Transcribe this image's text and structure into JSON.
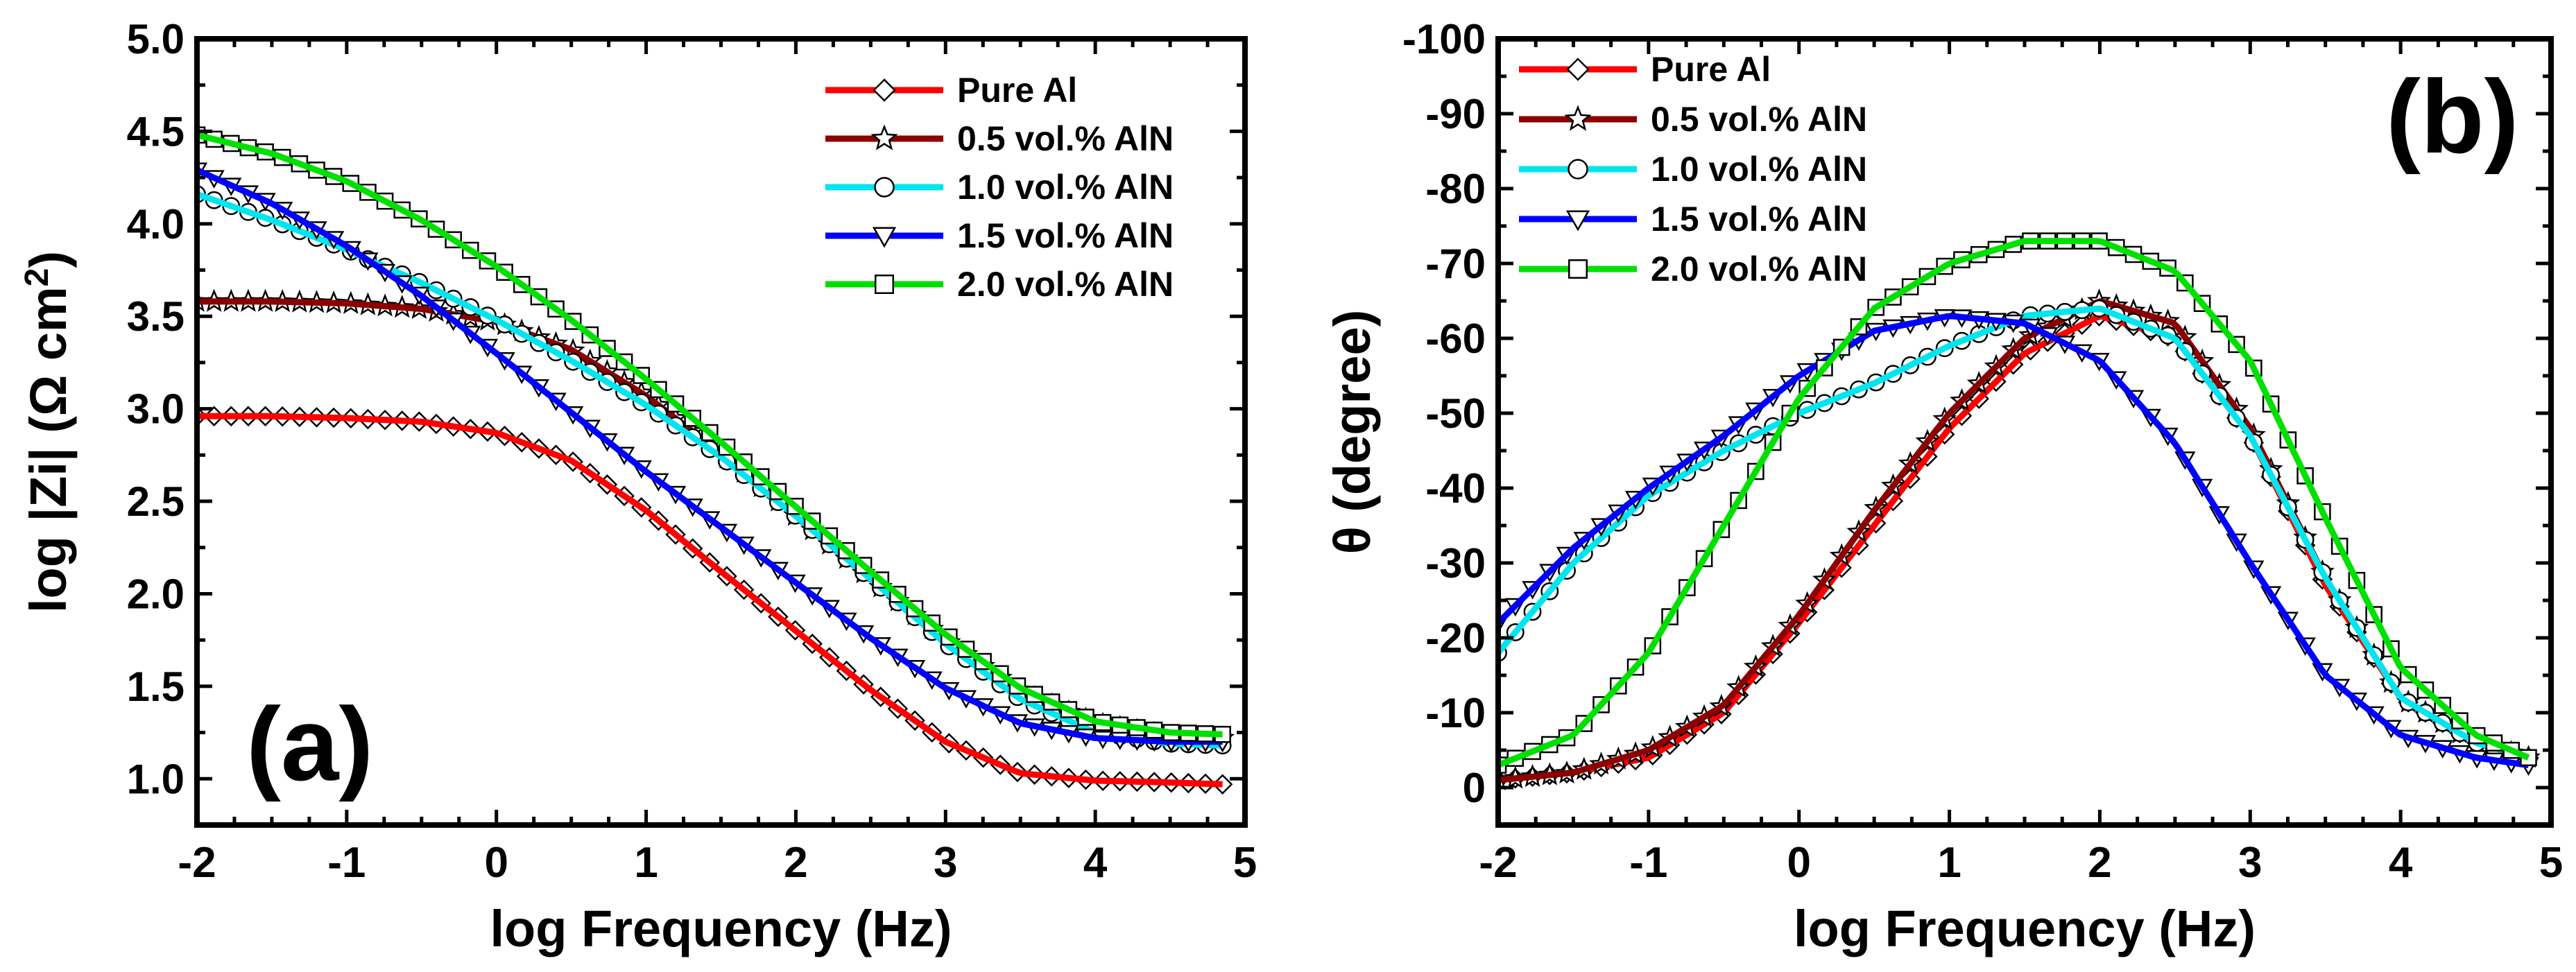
{
  "chart_data": [
    {
      "panel_label": "(a)",
      "type": "line",
      "xlabel": "log Frequency (Hz)",
      "ylabel": "log |Zi| (Ω cm",
      "ylabel_sup": "2",
      "ylabel_end": ")",
      "xlim": [
        -2,
        5
      ],
      "ylim": [
        0.75,
        5.0
      ],
      "xticks": [
        -2,
        -1,
        0,
        1,
        2,
        3,
        4,
        5
      ],
      "xtick_labels": [
        "-2",
        "-1",
        "0",
        "1",
        "2",
        "3",
        "4",
        "5"
      ],
      "yticks": [
        1.0,
        1.5,
        2.0,
        2.5,
        3.0,
        3.5,
        4.0,
        4.5,
        5.0
      ],
      "ytick_labels": [
        "1.0",
        "1.5",
        "2.0",
        "2.5",
        "3.0",
        "3.5",
        "4.0",
        "4.5",
        "5.0"
      ],
      "grid": false,
      "legend_position": "top-right",
      "series": [
        {
          "name": "Pure Al",
          "color": "#ff0000",
          "marker": "diamond",
          "x": [
            -2,
            -1.5,
            -1,
            -0.5,
            0,
            0.5,
            1,
            1.5,
            2,
            2.5,
            3,
            3.5,
            4,
            4.5,
            4.85
          ],
          "y": [
            2.96,
            2.96,
            2.95,
            2.93,
            2.87,
            2.72,
            2.45,
            2.12,
            1.8,
            1.48,
            1.2,
            1.03,
            0.99,
            0.98,
            0.97
          ]
        },
        {
          "name": "0.5 vol.% AlN",
          "color": "#8b0000",
          "marker": "star",
          "x": [
            -2,
            -1.5,
            -1,
            -0.5,
            0,
            0.5,
            1,
            1.5,
            2,
            2.5,
            3,
            3.5,
            4,
            4.5,
            4.85
          ],
          "y": [
            3.58,
            3.58,
            3.57,
            3.54,
            3.47,
            3.32,
            3.07,
            2.76,
            2.42,
            2.08,
            1.75,
            1.47,
            1.3,
            1.23,
            1.22
          ]
        },
        {
          "name": "1.0 vol.% AlN",
          "color": "#00e5ee",
          "marker": "circle",
          "x": [
            -2,
            -1.5,
            -1,
            -0.5,
            0,
            0.5,
            1,
            1.5,
            2,
            2.5,
            3,
            3.5,
            4,
            4.5,
            4.85
          ],
          "y": [
            4.16,
            4.02,
            3.86,
            3.68,
            3.48,
            3.26,
            3.02,
            2.74,
            2.42,
            2.08,
            1.73,
            1.43,
            1.25,
            1.19,
            1.18
          ]
        },
        {
          "name": "1.5 vol.% AlN",
          "color": "#0000ff",
          "marker": "triangle-down",
          "x": [
            -2,
            -1.5,
            -1,
            -0.5,
            0,
            0.5,
            1,
            1.5,
            2,
            2.5,
            3,
            3.5,
            4,
            4.5,
            4.85
          ],
          "y": [
            4.29,
            4.11,
            3.88,
            3.61,
            3.3,
            2.98,
            2.66,
            2.36,
            2.06,
            1.76,
            1.49,
            1.3,
            1.22,
            1.2,
            1.2
          ]
        },
        {
          "name": "2.0 vol.% AlN",
          "color": "#00e000",
          "marker": "square",
          "x": [
            -2,
            -1.5,
            -1,
            -0.5,
            0,
            0.5,
            1,
            1.5,
            2,
            2.5,
            3,
            3.5,
            4,
            4.5,
            4.85
          ],
          "y": [
            4.48,
            4.38,
            4.23,
            4.02,
            3.77,
            3.48,
            3.16,
            2.82,
            2.47,
            2.12,
            1.78,
            1.49,
            1.31,
            1.25,
            1.24
          ]
        }
      ]
    },
    {
      "panel_label": "(b)",
      "type": "line",
      "xlabel": "log Frequency (Hz)",
      "ylabel": "θ (degree)",
      "xlim": [
        -2,
        5
      ],
      "ylim": [
        5,
        -100
      ],
      "y_inverted": true,
      "xticks": [
        -2,
        -1,
        0,
        1,
        2,
        3,
        4,
        5
      ],
      "xtick_labels": [
        "-2",
        "-1",
        "0",
        "1",
        "2",
        "3",
        "4",
        "5"
      ],
      "yticks": [
        0,
        -10,
        -20,
        -30,
        -40,
        -50,
        -60,
        -70,
        -80,
        -90,
        -100
      ],
      "ytick_labels": [
        "0",
        "-10",
        "-20",
        "-30",
        "-40",
        "-50",
        "-60",
        "-70",
        "-80",
        "-90",
        "-100"
      ],
      "grid": false,
      "legend_position": "top-left",
      "series": [
        {
          "name": "Pure Al",
          "color": "#ff0000",
          "marker": "diamond",
          "x": [
            -2,
            -1.5,
            -1,
            -0.5,
            0,
            0.5,
            1,
            1.5,
            2,
            2.5,
            3,
            3.5,
            4,
            4.5,
            4.85
          ],
          "y": [
            -1,
            -2,
            -4,
            -10,
            -22,
            -35,
            -48,
            -58,
            -63,
            -60,
            -47,
            -27,
            -12,
            -6,
            -4
          ]
        },
        {
          "name": "0.5 vol.% AlN",
          "color": "#8b0000",
          "marker": "star",
          "x": [
            -2,
            -1.5,
            -1,
            -0.5,
            0,
            0.5,
            1,
            1.5,
            2,
            2.5,
            3,
            3.5,
            4,
            4.5,
            4.85
          ],
          "y": [
            -1,
            -2,
            -5,
            -11,
            -23,
            -37,
            -50,
            -60,
            -65,
            -62,
            -48,
            -28,
            -12,
            -6,
            -4
          ]
        },
        {
          "name": "1.0 vol.% AlN",
          "color": "#00e5ee",
          "marker": "circle",
          "x": [
            -2,
            -1.5,
            -1,
            -0.5,
            0,
            0.5,
            1,
            1.5,
            2,
            2.5,
            3,
            3.5,
            4,
            4.5,
            4.85
          ],
          "y": [
            -18,
            -30,
            -39,
            -45,
            -50,
            -54,
            -59,
            -63,
            -64,
            -60,
            -47,
            -28,
            -12,
            -6,
            -4
          ]
        },
        {
          "name": "1.5 vol.% AlN",
          "color": "#0000ff",
          "marker": "triangle-down",
          "x": [
            -2,
            -1.5,
            -1,
            -0.5,
            0,
            0.5,
            1,
            1.5,
            2,
            2.5,
            3,
            3.5,
            4,
            4.5,
            4.85
          ],
          "y": [
            -22,
            -32,
            -40,
            -47,
            -55,
            -61,
            -63,
            -62,
            -57,
            -46,
            -30,
            -15,
            -7,
            -4,
            -3
          ]
        },
        {
          "name": "2.0 vol.% AlN",
          "color": "#00e000",
          "marker": "square",
          "x": [
            -2,
            -1.5,
            -1,
            -0.5,
            0,
            0.5,
            1,
            1.5,
            2,
            2.5,
            3,
            3.5,
            4,
            4.5,
            4.85
          ],
          "y": [
            -3,
            -7,
            -18,
            -35,
            -52,
            -64,
            -70,
            -73,
            -73,
            -69,
            -57,
            -36,
            -16,
            -7,
            -4
          ]
        }
      ]
    }
  ]
}
